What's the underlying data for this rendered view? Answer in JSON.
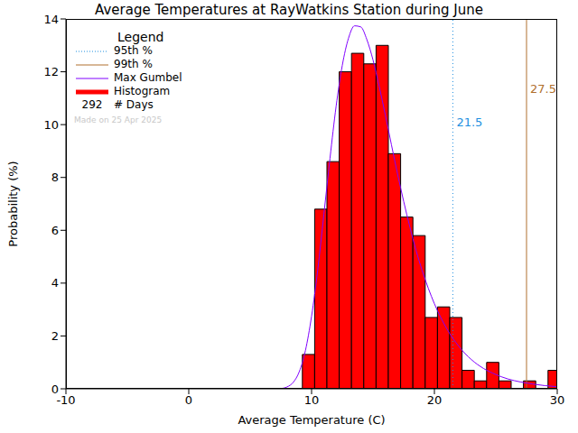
{
  "chart_data": {
    "type": "histogram",
    "title": "Average Temperatures at RayWatkins Station during June",
    "x_label": "Average Temperature (C)",
    "y_label": "Probability (%)",
    "xlim": [
      -10,
      30
    ],
    "xticks": [
      -10,
      0,
      10,
      20,
      30
    ],
    "ylim": [
      0,
      14
    ],
    "yticks": [
      0,
      2,
      4,
      6,
      8,
      10,
      12,
      14
    ],
    "legend": "top-left",
    "legend_title": "Legend",
    "days": {
      "value": 292,
      "label": "# Days"
    },
    "note": "Made on 25 Apr 2025",
    "series": [
      {
        "name": "Histogram",
        "type": "histogram",
        "color": "#ff0000",
        "bins": [
          9.25,
          10.25,
          11.25,
          12.25,
          13.25,
          14.25,
          15.25,
          16.25,
          17.25,
          18.25,
          19.25,
          20.25,
          21.25,
          22.25,
          23.25,
          24.25,
          25.25,
          26.25,
          27.25,
          28.25,
          29.25,
          30.25
        ],
        "values": [
          1.3,
          6.8,
          8.6,
          12.0,
          12.7,
          12.3,
          13.0,
          8.9,
          6.5,
          5.8,
          2.7,
          3.1,
          2.7,
          0.7,
          0.3,
          1.0,
          0.3,
          0,
          0.3,
          0,
          0.7
        ]
      },
      {
        "name": "Max Gumbel",
        "type": "line",
        "color": "#8000ff",
        "x": [
          7,
          7.5,
          8,
          8.5,
          9,
          9.5,
          10,
          10.5,
          11,
          11.5,
          12,
          12.5,
          13,
          13.5,
          14,
          14.5,
          15,
          15.5,
          16,
          16.5,
          17,
          17.5,
          18,
          18.5,
          19,
          19.5,
          20,
          21,
          22,
          23,
          24,
          25,
          26,
          27,
          28,
          29,
          30
        ],
        "values": [
          0.0,
          0.01,
          0.07,
          0.24,
          0.65,
          1.45,
          2.75,
          4.5,
          6.6,
          8.73,
          10.7,
          12.24,
          13.26,
          13.74,
          13.7,
          13.22,
          12.45,
          11.46,
          10.37,
          9.24,
          8.13,
          7.09,
          6.13,
          5.25,
          4.48,
          3.81,
          3.22,
          2.28,
          1.6,
          1.11,
          0.77,
          0.54,
          0.37,
          0.26,
          0.18,
          0.12,
          0.08
        ]
      }
    ],
    "reference_lines": [
      {
        "name": "95th %",
        "value": 21.5,
        "color": "#1e8fe0",
        "line_style": "dotted"
      },
      {
        "name": "99th %",
        "value": 27.5,
        "color": "#b0702e",
        "line_style": "solid"
      }
    ]
  }
}
